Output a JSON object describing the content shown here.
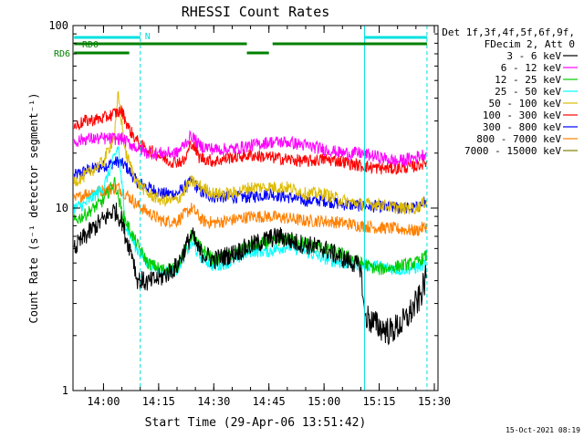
{
  "chart_data": {
    "type": "line",
    "title": "RHESSI Count Rates",
    "xlabel": "Start Time (29-Apr-06 13:51:42)",
    "ylabel": "Count Rate (s⁻¹ detector segment⁻¹)",
    "yscale": "log",
    "ylim": [
      1,
      100
    ],
    "xlim": [
      "13:51:42",
      "15:31:00"
    ],
    "x_ticks": [
      "14:00",
      "14:15",
      "14:30",
      "14:45",
      "15:00",
      "15:15",
      "15:30"
    ],
    "y_ticks": [
      "1",
      "10",
      "100"
    ],
    "legend_header": [
      "Det 1f,3f,4f,5f,6f,9f,",
      "FDecim 2, Att 0"
    ],
    "legend_position": "right",
    "series": [
      {
        "name": "3 - 6 keV",
        "color": "#000000",
        "x": [
          "13:52",
          "13:55",
          "13:58",
          "14:01",
          "14:03",
          "14:05",
          "14:06",
          "14:08",
          "14:09",
          "14:12",
          "14:16",
          "14:20",
          "14:23",
          "14:24",
          "14:26",
          "14:30",
          "14:35",
          "14:40",
          "14:45",
          "14:48",
          "14:52",
          "14:55",
          "15:00",
          "15:05",
          "15:08",
          "15:10",
          "15:11",
          "15:14",
          "15:18",
          "15:22",
          "15:26",
          "15:28"
        ],
        "y": [
          6.0,
          7.0,
          8.0,
          9.0,
          9.8,
          8.5,
          7.0,
          5.5,
          4.1,
          3.9,
          4.2,
          4.8,
          6.5,
          7.2,
          5.8,
          5.2,
          5.6,
          6.2,
          6.8,
          7.0,
          6.5,
          6.3,
          6.0,
          5.3,
          5.0,
          4.7,
          2.6,
          2.3,
          2.1,
          2.4,
          3.2,
          4.3
        ]
      },
      {
        "name": "6 - 12 keV",
        "color": "#ff00ff",
        "x": [
          "13:52",
          "13:55",
          "14:00",
          "14:05",
          "14:08",
          "14:12",
          "14:16",
          "14:20",
          "14:24",
          "14:26",
          "14:30",
          "14:35",
          "14:40",
          "14:45",
          "14:50",
          "14:55",
          "15:00",
          "15:05",
          "15:10",
          "15:15",
          "15:20",
          "15:25",
          "15:28"
        ],
        "y": [
          23,
          24,
          24,
          24,
          22,
          20,
          20,
          20,
          25,
          22,
          21,
          21,
          22,
          23,
          23,
          22,
          21,
          20,
          20,
          19,
          18,
          19,
          20
        ]
      },
      {
        "name": "12 - 25 keV",
        "color": "#00cc00",
        "x": [
          "13:52",
          "13:55",
          "14:00",
          "14:03",
          "14:05",
          "14:08",
          "14:12",
          "14:16",
          "14:20",
          "14:24",
          "14:26",
          "14:30",
          "14:35",
          "14:40",
          "14:45",
          "14:50",
          "14:55",
          "15:00",
          "15:05",
          "15:10",
          "15:15",
          "15:20",
          "15:25",
          "15:28"
        ],
        "y": [
          8.5,
          9.2,
          11,
          14,
          9.5,
          7.0,
          5.0,
          4.6,
          4.8,
          7.2,
          6.2,
          5.2,
          5.6,
          6.2,
          6.5,
          6.8,
          6.4,
          6.0,
          5.6,
          5.0,
          4.6,
          4.8,
          5.0,
          5.5
        ]
      },
      {
        "name": "25 - 50 keV",
        "color": "#00ffff",
        "x": [
          "13:52",
          "13:55",
          "14:00",
          "14:03",
          "14:04",
          "14:06",
          "14:09",
          "14:12",
          "14:16",
          "14:20",
          "14:24",
          "14:26",
          "14:30",
          "14:35",
          "14:40",
          "14:45",
          "14:50",
          "14:55",
          "15:00",
          "15:05",
          "15:10",
          "15:15",
          "15:20",
          "15:25",
          "15:28"
        ],
        "y": [
          10,
          10.5,
          13,
          19,
          22,
          8,
          6,
          5,
          4.5,
          4.6,
          6.5,
          5.5,
          4.8,
          5.1,
          5.8,
          5.8,
          6.2,
          5.8,
          5.3,
          5.0,
          4.9,
          4.8,
          4.6,
          4.7,
          5.0
        ]
      },
      {
        "name": "50 - 100 keV",
        "color": "#ddbb00",
        "x": [
          "13:52",
          "13:55",
          "14:00",
          "14:03",
          "14:04",
          "14:06",
          "14:09",
          "14:12",
          "14:16",
          "14:20",
          "14:24",
          "14:30",
          "14:35",
          "14:40",
          "14:45",
          "14:50",
          "14:55",
          "15:00",
          "15:05",
          "15:10",
          "15:15",
          "15:20",
          "15:25",
          "15:28"
        ],
        "y": [
          14,
          15,
          18,
          25,
          42,
          20,
          14,
          12,
          11,
          11,
          14,
          12,
          12,
          13,
          13,
          13,
          12,
          12,
          11,
          10.5,
          10.5,
          10,
          10,
          11
        ]
      },
      {
        "name": "100 - 300 keV",
        "color": "#ff0000",
        "x": [
          "13:52",
          "13:55",
          "14:00",
          "14:03",
          "14:05",
          "14:07",
          "14:10",
          "14:14",
          "14:18",
          "14:22",
          "14:24",
          "14:26",
          "14:30",
          "14:35",
          "14:40",
          "14:45",
          "14:50",
          "14:55",
          "15:00",
          "15:05",
          "15:10",
          "15:15",
          "15:20",
          "15:25",
          "15:28"
        ],
        "y": [
          28,
          30,
          31,
          33,
          34,
          27,
          22,
          20,
          18,
          18,
          23,
          19,
          18,
          19,
          19.5,
          19,
          18.5,
          18,
          18.5,
          18,
          17,
          16.5,
          16.5,
          17,
          18
        ]
      },
      {
        "name": "300 - 800 keV",
        "color": "#0000ff",
        "x": [
          "13:52",
          "13:55",
          "14:00",
          "14:04",
          "14:06",
          "14:09",
          "14:12",
          "14:16",
          "14:20",
          "14:24",
          "14:27",
          "14:30",
          "14:35",
          "14:40",
          "14:45",
          "14:50",
          "14:55",
          "15:00",
          "15:05",
          "15:10",
          "15:15",
          "15:20",
          "15:25",
          "15:28"
        ],
        "y": [
          15,
          16,
          17,
          18,
          17,
          14,
          13,
          12,
          12,
          14,
          12,
          11.5,
          11.5,
          11.5,
          12,
          11.5,
          11,
          11,
          10.5,
          10.3,
          10.2,
          10,
          10,
          11
        ]
      },
      {
        "name": "800 - 7000 keV",
        "color": "#ff8000",
        "x": [
          "13:52",
          "13:55",
          "14:00",
          "14:04",
          "14:06",
          "14:09",
          "14:12",
          "14:16",
          "14:20",
          "14:24",
          "14:27",
          "14:30",
          "14:35",
          "14:40",
          "14:45",
          "14:50",
          "14:55",
          "15:00",
          "15:05",
          "15:10",
          "15:15",
          "15:20",
          "15:25",
          "15:28"
        ],
        "y": [
          11,
          12,
          12.5,
          13,
          12,
          10.5,
          9.5,
          8.5,
          8.5,
          10,
          8.5,
          8.3,
          8.6,
          9.0,
          9.0,
          8.8,
          8.5,
          8.5,
          8.3,
          8.0,
          7.8,
          7.7,
          7.5,
          8.0
        ]
      },
      {
        "name": "7000 - 15000 keV",
        "color": "#808000",
        "x": [],
        "y": []
      }
    ],
    "flags": [
      {
        "label": "N",
        "color": "#00e0e0",
        "segments": [
          [
            "13:52",
            "14:10"
          ],
          [
            "15:11",
            "15:28"
          ]
        ]
      },
      {
        "label": "RD0",
        "color": "#008000",
        "segments": [
          [
            "13:52",
            "14:10"
          ],
          [
            "14:10",
            "14:39"
          ],
          [
            "14:46",
            "15:28"
          ]
        ]
      },
      {
        "label": "RD6",
        "color": "#008000",
        "segments": [
          [
            "13:52",
            "14:07"
          ],
          [
            "14:39",
            "14:45"
          ]
        ]
      }
    ],
    "vlines": [
      {
        "time": "13:51:42",
        "style": "solid",
        "color": "#00e0e0"
      },
      {
        "time": "14:10",
        "style": "dashed",
        "color": "#00e0e0"
      },
      {
        "time": "15:11",
        "style": "solid",
        "color": "#00e0e0"
      },
      {
        "time": "15:28",
        "style": "dashed",
        "color": "#00e0e0"
      }
    ],
    "footer": "15-Oct-2021 08:19"
  }
}
